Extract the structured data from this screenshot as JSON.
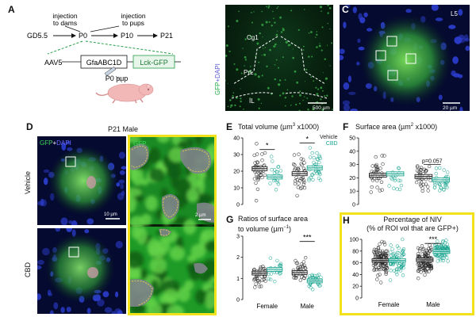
{
  "panelA": {
    "label": "A",
    "gd": "GD5.5",
    "p0": "P0",
    "p10": "P10",
    "p21": "P21",
    "inj1": "injection\nto dams",
    "inj2": "injection\nto pups",
    "aav": "AAV5",
    "promoter": "GfaABC1D",
    "reporter": "Lck-GFP",
    "pup": "P0 pup"
  },
  "panelB": {
    "label": "B",
    "cg1": "Cg1",
    "prl": "PrL",
    "il": "IL",
    "scale": "500 µm",
    "side": "GFP+DAPI"
  },
  "panelC": {
    "label": "C",
    "layer": "L5",
    "scale": "20 µm"
  },
  "panelD": {
    "label": "D",
    "title": "P21 Male",
    "gfpdapi_gfp": "GFP",
    "gfpdapi_plus": "+",
    "gfpdapi_dapi": "DAPI",
    "gfp": "GFP",
    "vehicle": "Vehicle",
    "cbd": "CBD",
    "scale1": "10 µm",
    "scale2": "2 µm"
  },
  "colors": {
    "vehicle": "#222222",
    "cbd": "#1aa58f",
    "highlight": "#f2e21b"
  },
  "panelE": {
    "label": "E",
    "title_a": "Total volume (µm",
    "title_sup": "3",
    "title_b": " x1000)",
    "legend_veh": "Vehicle",
    "legend_cbd": "CBD",
    "sig1": "*",
    "sig2": "*"
  },
  "panelF": {
    "label": "F",
    "title_a": "Surface area (µm",
    "title_sup": "2",
    "title_b": " x1000)",
    "pval": "p=0.057"
  },
  "panelG": {
    "label": "G",
    "title1": "Ratios of surface area",
    "title2_a": "to volume (µm",
    "title2_sup": "−1",
    "title2_b": ")",
    "sig": "***",
    "female": "Female",
    "male": "Male"
  },
  "panelH": {
    "label": "H",
    "title1": "Percentage of NIV",
    "title2": "(% of ROI vol that are GFP+)",
    "sig": "***",
    "female": "Female",
    "male": "Male"
  },
  "chart_data": [
    {
      "id": "E",
      "type": "scatter",
      "title": "Total volume (µm3 x1000)",
      "ylim": [
        0,
        40
      ],
      "yticks": [
        0,
        10,
        20,
        30,
        40
      ],
      "groups": [
        "Female Vehicle",
        "Female CBD",
        "Male Vehicle",
        "Male CBD"
      ],
      "means": [
        21.5,
        16.5,
        18.5,
        22
      ],
      "n": [
        40,
        22,
        38,
        36
      ],
      "spread": [
        6,
        4.5,
        6,
        6
      ],
      "legend": [
        "Vehicle",
        "CBD"
      ]
    },
    {
      "id": "F",
      "type": "scatter",
      "title": "Surface area (µm2 x1000)",
      "ylim": [
        0,
        50
      ],
      "yticks": [
        0,
        10,
        20,
        30,
        40,
        50
      ],
      "groups": [
        "Female Vehicle",
        "Female CBD",
        "Male Vehicle",
        "Male CBD"
      ],
      "means": [
        22,
        23,
        21,
        18.5
      ],
      "n": [
        38,
        18,
        38,
        34
      ],
      "spread": [
        7,
        7,
        5,
        5
      ]
    },
    {
      "id": "G",
      "type": "scatter",
      "title": "Ratios of surface area to volume (µm−1)",
      "ylim": [
        0,
        3
      ],
      "yticks": [
        0,
        1,
        2,
        3
      ],
      "groups": [
        "Female Vehicle",
        "Female CBD",
        "Male Vehicle",
        "Male CBD"
      ],
      "means": [
        1.25,
        1.42,
        1.28,
        0.88
      ],
      "n": [
        40,
        22,
        38,
        36
      ],
      "spread": [
        0.3,
        0.3,
        0.3,
        0.2
      ],
      "xlabels": [
        "Female",
        "Male"
      ]
    },
    {
      "id": "H",
      "type": "scatter",
      "title": "Percentage of NIV (% of ROI vol that are GFP+)",
      "ylim": [
        0,
        100
      ],
      "yticks": [
        0,
        20,
        40,
        60,
        80,
        100
      ],
      "groups": [
        "Female Vehicle",
        "Female CBD",
        "Male Vehicle",
        "Male CBD"
      ],
      "means": [
        64,
        64,
        65,
        79
      ],
      "n": [
        110,
        75,
        110,
        85
      ],
      "spread": [
        14,
        14,
        12,
        9
      ],
      "xlabels": [
        "Female",
        "Male"
      ]
    }
  ]
}
